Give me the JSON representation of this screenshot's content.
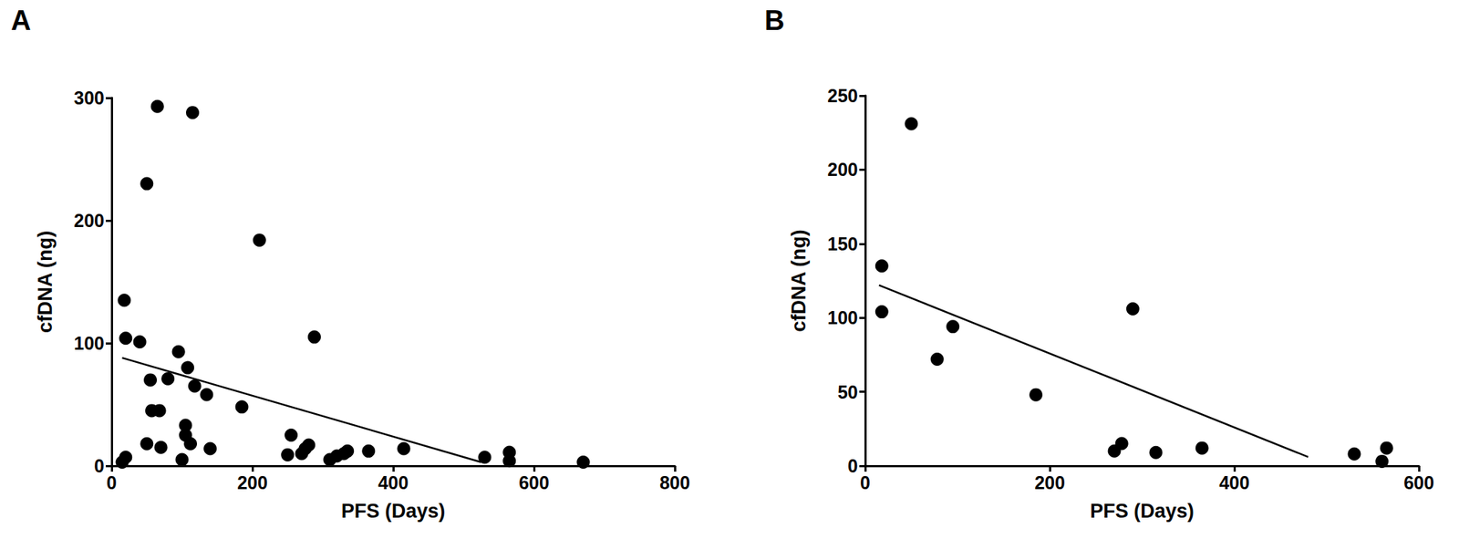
{
  "chart_data": [
    {
      "type": "scatter",
      "title": "A",
      "xlabel": "PFS (Days)",
      "ylabel": "cfDNA (ng)",
      "color": "#000000",
      "marker": "circle",
      "x": [
        15,
        20,
        18,
        20,
        40,
        50,
        50,
        55,
        57,
        65,
        68,
        70,
        80,
        95,
        100,
        105,
        105,
        108,
        112,
        115,
        118,
        135,
        140,
        185,
        210,
        250,
        255,
        270,
        275,
        280,
        288,
        310,
        320,
        330,
        335,
        365,
        415,
        530,
        565,
        565,
        670
      ],
      "values": [
        3,
        7,
        135,
        104,
        101,
        230,
        18,
        70,
        45,
        293,
        45,
        15,
        71,
        93,
        5,
        33,
        25,
        80,
        18,
        288,
        65,
        58,
        14,
        48,
        184,
        9,
        25,
        10,
        14,
        17,
        105,
        5,
        8,
        10,
        12,
        12,
        14,
        7,
        4,
        11,
        3
      ],
      "trend_line": {
        "x": [
          15,
          525
        ],
        "values": [
          88,
          3
        ]
      },
      "xlim": [
        0,
        800
      ],
      "xticks": [
        0,
        200,
        400,
        600,
        800
      ],
      "ylim": [
        0,
        300
      ],
      "yticks": [
        0,
        100,
        200,
        300
      ],
      "grid": false
    },
    {
      "type": "scatter",
      "title": "B",
      "xlabel": "PFS (Days)",
      "ylabel": "cfDNA (ng)",
      "color": "#000000",
      "marker": "circle",
      "x": [
        18,
        18,
        50,
        78,
        95,
        185,
        270,
        278,
        290,
        315,
        365,
        530,
        560,
        565
      ],
      "values": [
        135,
        104,
        231,
        72,
        94,
        48,
        10,
        15,
        106,
        9,
        12,
        8,
        3,
        12
      ],
      "trend_line": {
        "x": [
          15,
          480
        ],
        "values": [
          122,
          6
        ]
      },
      "xlim": [
        0,
        600
      ],
      "xticks": [
        0,
        200,
        400,
        600
      ],
      "ylim": [
        0,
        250
      ],
      "yticks": [
        0,
        50,
        100,
        150,
        200,
        250
      ],
      "grid": false
    }
  ]
}
